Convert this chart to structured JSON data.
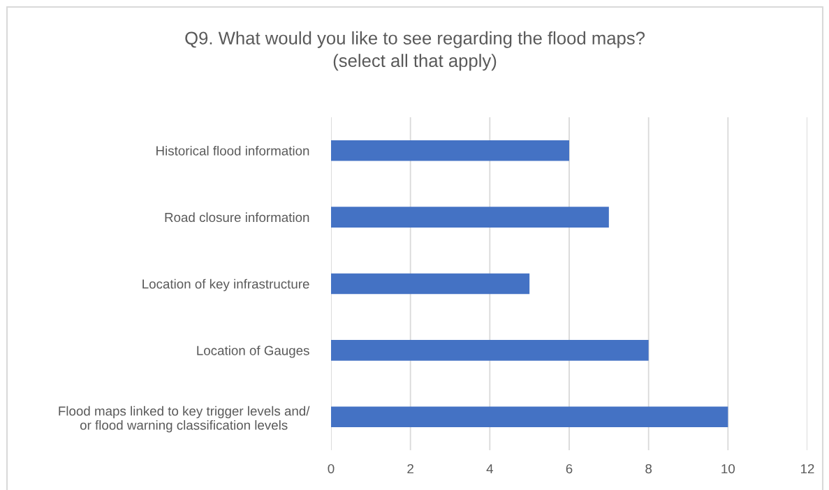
{
  "chart_data": {
    "type": "bar",
    "orientation": "horizontal",
    "title": "Q9. What would you like to see regarding the flood maps?\n(select all that apply)",
    "categories": [
      "Historical flood information",
      "Road closure information",
      "Location of key infrastructure",
      "Location of Gauges",
      "Flood maps linked to key trigger levels and/\nor flood warning classification levels"
    ],
    "values": [
      6,
      7,
      5,
      8,
      10
    ],
    "color": "#4472c4",
    "xlim": [
      0,
      12
    ],
    "xticks": [
      0,
      2,
      4,
      6,
      8,
      10,
      12
    ],
    "grid": "x"
  }
}
